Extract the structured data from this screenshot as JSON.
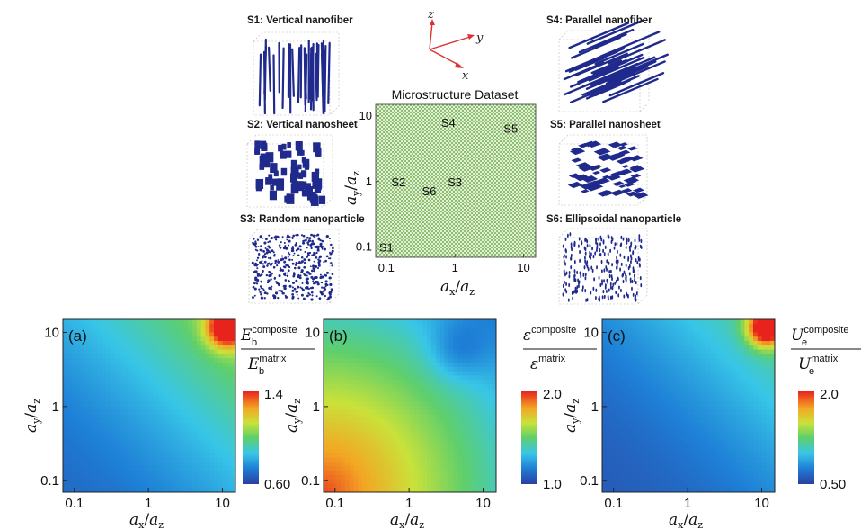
{
  "microstructures": [
    {
      "label": "S1: Vertical nanofiber",
      "kind": "vfiber"
    },
    {
      "label": "S2: Vertical nanosheet",
      "kind": "vsheet"
    },
    {
      "label": "S3: Random nanoparticle",
      "kind": "random"
    },
    {
      "label": "S4: Parallel nanofiber",
      "kind": "pfiber"
    },
    {
      "label": "S5: Parallel nanosheet",
      "kind": "psheet"
    },
    {
      "label": "S6: Ellipsoidal nanoparticle",
      "kind": "ellip"
    }
  ],
  "coordinate_axes": {
    "z": "z",
    "y": "y",
    "x": "x"
  },
  "colors": {
    "structure": "#1f2a8c",
    "grid_green": "#8cc070",
    "grid_light": "#e3f0d6",
    "axis_red": "#d33"
  },
  "chart_data": [
    {
      "type": "scatter",
      "title": "Microstructure Dataset",
      "x_scale": "log",
      "y_scale": "log",
      "xlim": [
        0.07,
        15
      ],
      "ylim": [
        0.07,
        15
      ],
      "x_ticks": [
        "0.1",
        "1",
        "10"
      ],
      "y_ticks": [
        "0.1",
        "1",
        "10"
      ],
      "xlabel": {
        "a": "a",
        "sub1": "x",
        "sep": "/",
        "sub2": "z"
      },
      "ylabel": {
        "a": "a",
        "sub1": "y",
        "sep": "/",
        "sub2": "z"
      },
      "fill": "dense checkerboard grid of sampled microstructures",
      "points": [
        {
          "name": "S1",
          "x": 0.1,
          "y": 0.1
        },
        {
          "name": "S2",
          "x": 0.15,
          "y": 1.0
        },
        {
          "name": "S3",
          "x": 1.0,
          "y": 1.0
        },
        {
          "name": "S4",
          "x": 0.8,
          "y": 8.0
        },
        {
          "name": "S5",
          "x": 6.5,
          "y": 6.5
        },
        {
          "name": "S6",
          "x": 0.42,
          "y": 0.72
        }
      ]
    },
    {
      "type": "heatmap",
      "panel_label": "(a)",
      "quantity": {
        "sym": "E",
        "sub": "b",
        "num": "composite",
        "den": "matrix"
      },
      "x_scale": "log",
      "y_scale": "log",
      "xlim": [
        0.07,
        15
      ],
      "ylim": [
        0.07,
        15
      ],
      "x_ticks": [
        "0.1",
        "1",
        "10"
      ],
      "y_ticks": [
        "0.1",
        "1",
        "10"
      ],
      "colorbar": {
        "min": 0.6,
        "max": 1.4,
        "min_label": "0.60",
        "max_label": "1.4"
      },
      "description": "low at small ax/az and ay/az, rising toward the top-right; maximum near ax/az≈10, ay/az≈10",
      "peak": {
        "x": 10,
        "y": 10
      }
    },
    {
      "type": "heatmap",
      "panel_label": "(b)",
      "quantity": {
        "sym": "ε",
        "sub": "",
        "num": "composite",
        "den": "matrix"
      },
      "x_scale": "log",
      "y_scale": "log",
      "xlim": [
        0.07,
        15
      ],
      "ylim": [
        0.07,
        15
      ],
      "x_ticks": [
        "0.1",
        "1",
        "10"
      ],
      "y_ticks": [
        "0.1",
        "1",
        "10"
      ],
      "colorbar": {
        "min": 1.0,
        "max": 2.0,
        "min_label": "1.0",
        "max_label": "2.0"
      },
      "description": "highest at small ax/az and ay/az (bottom-left), decreasing toward the top-right with a minimum near ax/az≈5, ay/az≈6",
      "peak": {
        "x": 0.07,
        "y": 0.07
      }
    },
    {
      "type": "heatmap",
      "panel_label": "(c)",
      "quantity": {
        "sym": "U",
        "sub": "e",
        "num": "composite",
        "den": "matrix"
      },
      "x_scale": "log",
      "y_scale": "log",
      "xlim": [
        0.07,
        15
      ],
      "ylim": [
        0.07,
        15
      ],
      "x_ticks": [
        "0.1",
        "1",
        "10"
      ],
      "y_ticks": [
        "0.1",
        "1",
        "10"
      ],
      "colorbar": {
        "min": 0.5,
        "max": 2.0,
        "min_label": "0.50",
        "max_label": "2.0"
      },
      "description": "low over most of the domain, rising toward the top-right; maximum near ax/az≈10, ay/az≈10",
      "peak": {
        "x": 10,
        "y": 10
      }
    }
  ]
}
